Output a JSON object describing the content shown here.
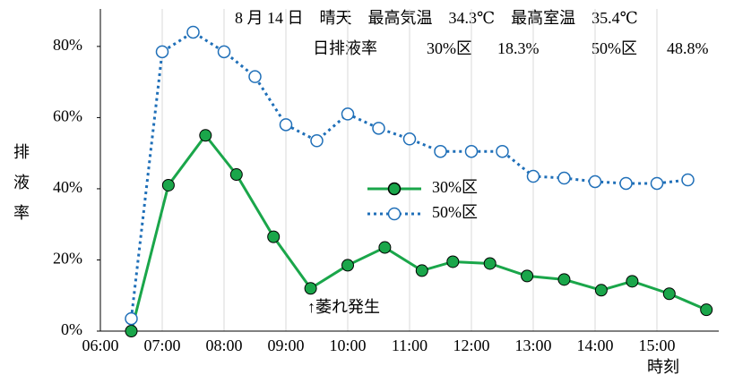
{
  "chart_data": {
    "type": "line",
    "header_line1": "8 月 14 日　晴天　最高気温　34.3℃　最高室温　35.4℃",
    "header_line2": [
      "日排液率",
      "30%区",
      "18.3%",
      "50%区",
      "48.8%"
    ],
    "annotation": "↑萎れ発生",
    "y_label": "排液率",
    "x_label": "時刻",
    "xlim": [
      6,
      16
    ],
    "xticks": [
      {
        "value": 6,
        "label": "06:00"
      },
      {
        "value": 7,
        "label": "07:00"
      },
      {
        "value": 8,
        "label": "08:00"
      },
      {
        "value": 9,
        "label": "09:00"
      },
      {
        "value": 10,
        "label": "10:00"
      },
      {
        "value": 11,
        "label": "11:00"
      },
      {
        "value": 12,
        "label": "12:00"
      },
      {
        "value": 13,
        "label": "13:00"
      },
      {
        "value": 14,
        "label": "14:00"
      },
      {
        "value": 15,
        "label": "15:00"
      }
    ],
    "ylim": [
      0,
      85
    ],
    "yticks": [
      {
        "value": 0,
        "label": "0%"
      },
      {
        "value": 20,
        "label": "20%"
      },
      {
        "value": 40,
        "label": "40%"
      },
      {
        "value": 60,
        "label": "60%"
      },
      {
        "value": 80,
        "label": "80%"
      }
    ],
    "grid": true,
    "series": [
      {
        "name": "30%区",
        "color": "#1aa64a",
        "style": "solid",
        "marker": "filled",
        "x": [
          6.5,
          7.1,
          7.7,
          8.2,
          8.8,
          9.4,
          10.0,
          10.6,
          11.2,
          11.7,
          12.3,
          12.9,
          13.5,
          14.1,
          14.6,
          15.2,
          15.8
        ],
        "values": [
          0,
          41,
          55,
          44,
          26.5,
          12,
          18.5,
          23.5,
          17,
          19.5,
          19,
          15.5,
          14.5,
          11.5,
          14,
          10.5,
          6
        ]
      },
      {
        "name": "50%区",
        "color": "#1f6fb8",
        "style": "dotted",
        "marker": "open",
        "x": [
          6.5,
          7.0,
          7.5,
          8.0,
          8.5,
          9.0,
          9.5,
          10.0,
          10.5,
          11.0,
          11.5,
          12.0,
          12.5,
          13.0,
          13.5,
          14.0,
          14.5,
          15.0,
          15.5
        ],
        "values": [
          3.5,
          78.5,
          84,
          78.5,
          71.5,
          58,
          53.5,
          61,
          57,
          54,
          50.5,
          50.5,
          50.5,
          43.5,
          43,
          42,
          41.5,
          41.5,
          42.5
        ]
      }
    ]
  }
}
